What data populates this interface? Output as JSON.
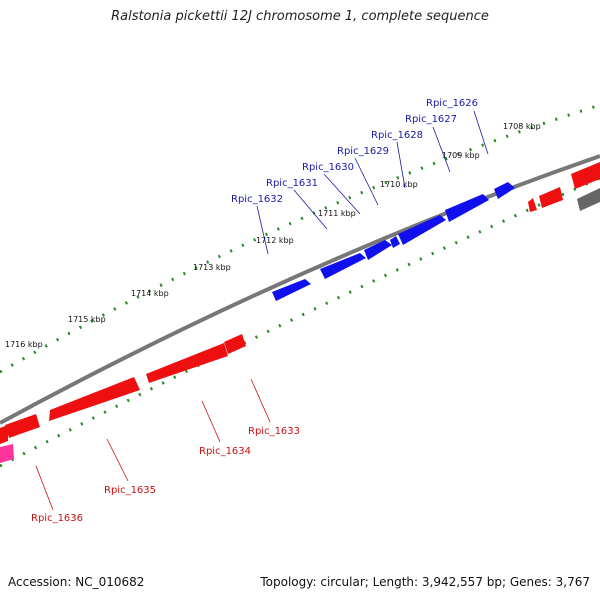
{
  "title": "Ralstonia pickettii 12J chromosome 1, complete sequence",
  "footer": {
    "accession": "Accession: NC_010682",
    "summary": "Topology: circular; Length: 3,942,557 bp; Genes: 3,767"
  },
  "colors": {
    "forward_gene": "#1010ee",
    "reverse_gene": "#ee1010",
    "pink_gene": "#ff3399",
    "grey_gene": "#666666",
    "backbone": "#777777",
    "tick": "#228B22",
    "forward_label": "#1a1aaa",
    "reverse_label": "#cc1111"
  },
  "scale_labels": [
    "1708 kbp",
    "1709 kbp",
    "1710 kbp",
    "1711 kbp",
    "1712 kbp",
    "1713 kbp",
    "1714 kbp",
    "1715 kbp",
    "1716 kbp"
  ],
  "forward_genes": [
    "Rpic_1626",
    "Rpic_1627",
    "Rpic_1628",
    "Rpic_1629",
    "Rpic_1630",
    "Rpic_1631",
    "Rpic_1632"
  ],
  "reverse_genes": [
    "Rpic_1633",
    "Rpic_1634",
    "Rpic_1635",
    "Rpic_1636"
  ]
}
